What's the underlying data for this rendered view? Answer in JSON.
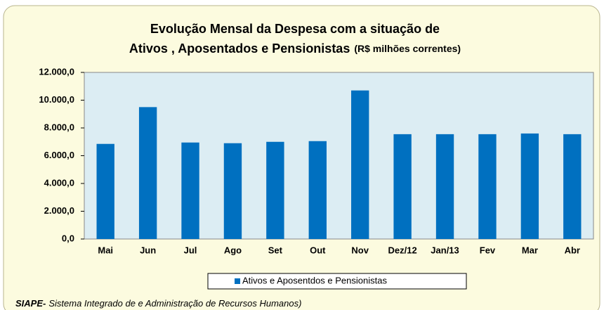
{
  "chart_data": {
    "type": "bar",
    "title": [
      "Evolução Mensal da Despesa com a situação de",
      "Ativos , Aposentados e Pensionistas"
    ],
    "subtitle": "(R$ milhões correntes)",
    "categories": [
      "Mai",
      "Jun",
      "Jul",
      "Ago",
      "Set",
      "Out",
      "Nov",
      "Dez/12",
      "Jan/13",
      "Fev",
      "Mar",
      "Abr"
    ],
    "series": [
      {
        "name": "Ativos e Aposentdos e Pensionistas",
        "color": "#0070c0",
        "values": [
          6850,
          9500,
          6950,
          6900,
          7000,
          7050,
          10700,
          7550,
          7550,
          7550,
          7600,
          7550
        ]
      }
    ],
    "ylim": [
      0,
      12000
    ],
    "yticks": [
      {
        "value": 0,
        "label": "0,0"
      },
      {
        "value": 2000,
        "label": "2.000,0"
      },
      {
        "value": 4000,
        "label": "4.000,0"
      },
      {
        "value": 6000,
        "label": "6.000,0"
      },
      {
        "value": 8000,
        "label": "8.000,0"
      },
      {
        "value": 10000,
        "label": "10.000,0"
      },
      {
        "value": 12000,
        "label": "12.000,0"
      }
    ],
    "grid": false,
    "legend": "bottom",
    "source": {
      "label": "SIAPE-",
      "text": "Sistema Integrado de e Administração de Recursos Humanos)"
    }
  }
}
